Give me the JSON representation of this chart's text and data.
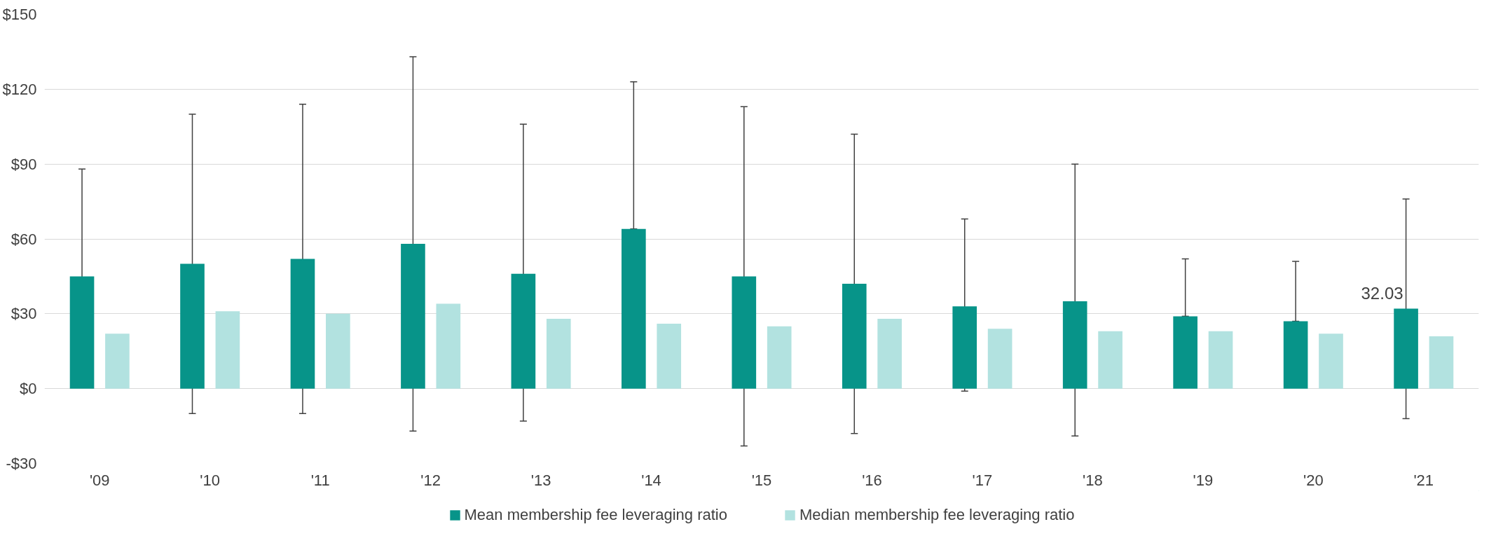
{
  "chart_data": {
    "type": "bar",
    "categories": [
      "'09",
      "'10",
      "'11",
      "'12",
      "'13",
      "'14",
      "'15",
      "'16",
      "'17",
      "'18",
      "'19",
      "'20",
      "'21"
    ],
    "series": [
      {
        "name": "Mean membership fee leveraging ratio",
        "color": "#079489",
        "values": [
          45,
          50,
          52,
          58,
          46,
          64,
          45,
          42,
          33,
          35,
          29,
          27,
          32.03
        ],
        "errors": [
          [
            1,
            88
          ],
          [
            -10,
            110
          ],
          [
            -10,
            114
          ],
          [
            -17,
            133
          ],
          [
            -13,
            106
          ],
          [
            64,
            123
          ],
          [
            -23,
            113
          ],
          [
            -18,
            102
          ],
          [
            -1,
            68
          ],
          [
            -19,
            90
          ],
          [
            29,
            52
          ],
          [
            27,
            51
          ],
          [
            -12,
            76
          ]
        ],
        "value_labels": [
          null,
          null,
          null,
          null,
          null,
          null,
          null,
          null,
          null,
          null,
          null,
          null,
          "32.03"
        ]
      },
      {
        "name": "Median membership fee leveraging ratio",
        "color": "#b2e2e0",
        "values": [
          22,
          31,
          30,
          34,
          28,
          26,
          25,
          28,
          24,
          23,
          23,
          22,
          21
        ]
      }
    ],
    "ylim": [
      -30,
      150
    ],
    "yticks": [
      {
        "value": -30,
        "label": "-$30"
      },
      {
        "value": 0,
        "label": "$0"
      },
      {
        "value": 30,
        "label": "$30"
      },
      {
        "value": 60,
        "label": "$60"
      },
      {
        "value": 90,
        "label": "$90"
      },
      {
        "value": 120,
        "label": "$120"
      },
      {
        "value": 150,
        "label": "$150"
      }
    ],
    "grid": "y",
    "legend": "bottom"
  }
}
